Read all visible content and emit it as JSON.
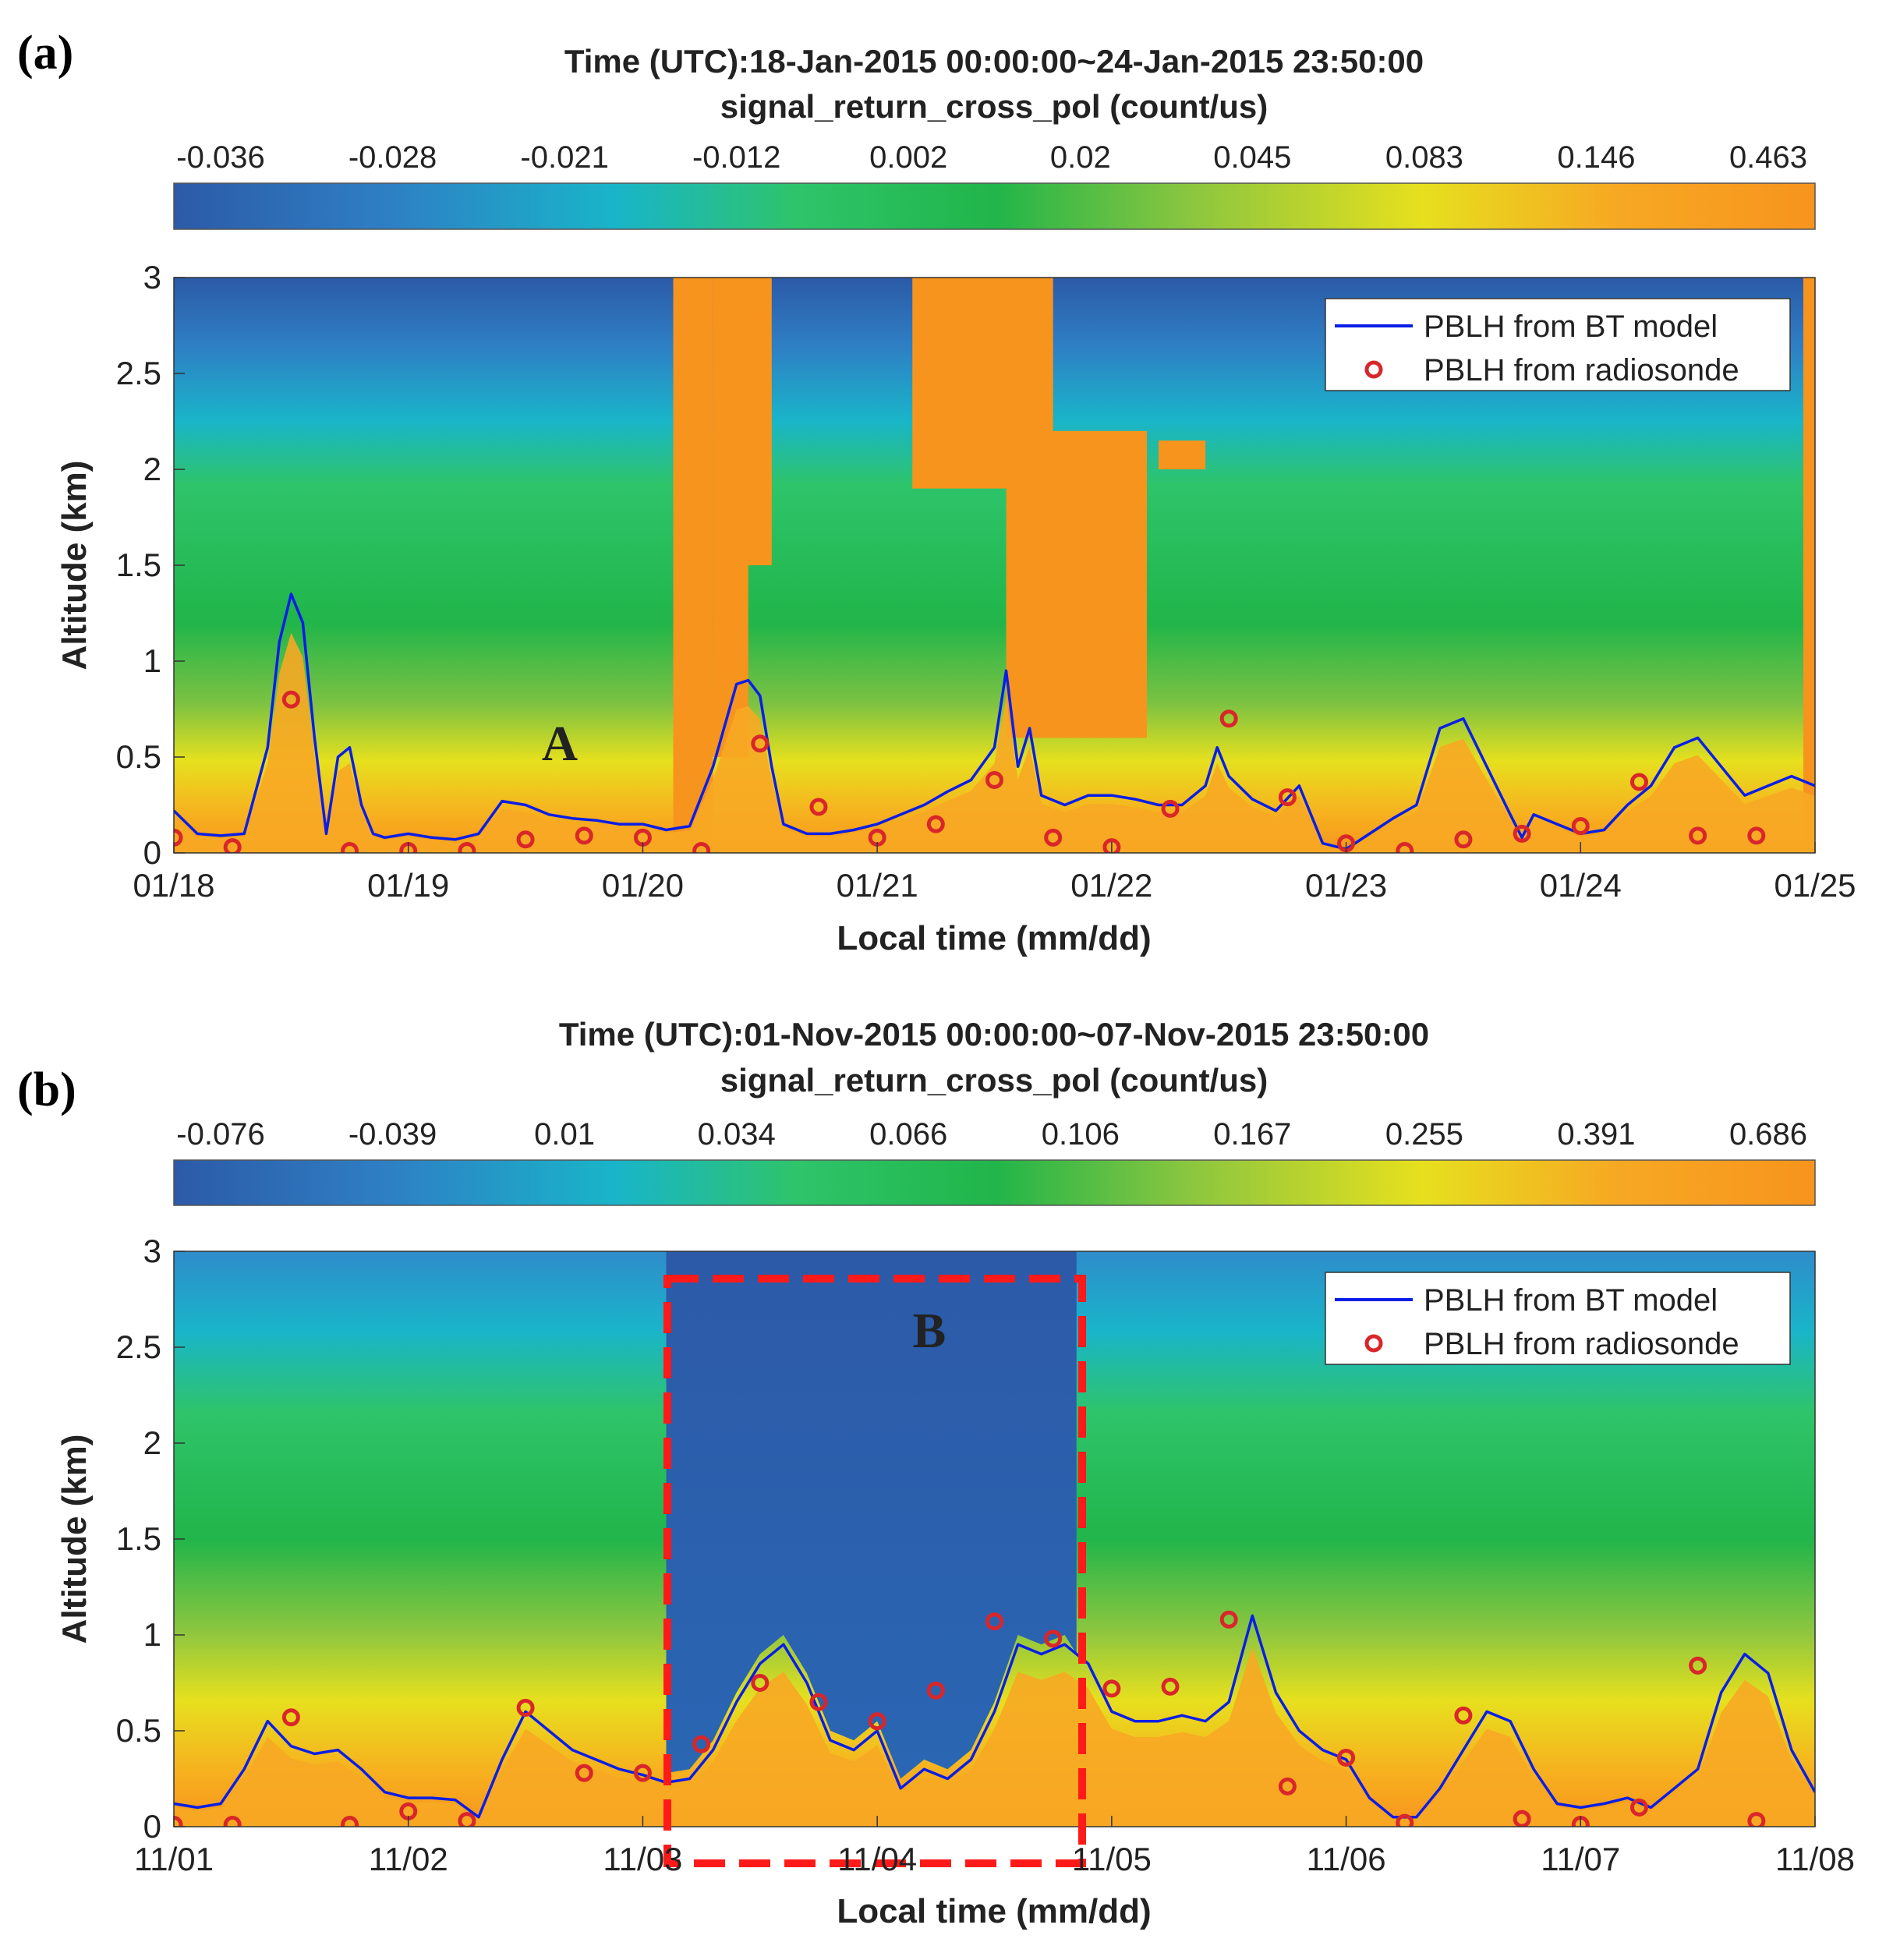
{
  "colors": {
    "pblh_line": "#0a1ee6",
    "radiosonde": "#d9262a",
    "box": "#ff1a1a",
    "cmap": [
      "#2c5aa8",
      "#2e7fc4",
      "#19b5c9",
      "#2ec46a",
      "#21b54a",
      "#8cc63f",
      "#e6e01e",
      "#f7a823",
      "#f7941d"
    ]
  },
  "chart_data": [
    {
      "type": "heatmap",
      "panel_label": "(a)",
      "title": "Time (UTC):18-Jan-2015 00:00:00~24-Jan-2015 23:50:00",
      "subtitle": "signal_return_cross_pol (count/us)",
      "colorbar_ticks": [
        "-0.036",
        "-0.028",
        "-0.021",
        "-0.012",
        "0.002",
        "0.02",
        "0.045",
        "0.083",
        "0.146",
        "0.463"
      ],
      "xlabel": "Local time (mm/dd)",
      "ylabel": "Altitude (km)",
      "xticks": [
        "01/18",
        "01/19",
        "01/20",
        "01/21",
        "01/22",
        "01/23",
        "01/24",
        "01/25"
      ],
      "xlim": [
        0,
        7
      ],
      "ylim": [
        0,
        3
      ],
      "yticks": [
        "0",
        "0.5",
        "1",
        "1.5",
        "2",
        "2.5",
        "3"
      ],
      "legend": [
        "PBLH from BT model",
        "PBLH from radiosonde"
      ],
      "legend_position": "top-right",
      "annotation": "A",
      "clouds": [
        {
          "x0": 2.13,
          "x1": 2.3,
          "bottom": 0.0,
          "top": 3.0
        },
        {
          "x0": 2.42,
          "x1": 2.55,
          "bottom": 1.5,
          "top": 3.0
        },
        {
          "x0": 2.3,
          "x1": 2.45,
          "bottom": 0.5,
          "top": 3.0
        },
        {
          "x0": 3.15,
          "x1": 3.75,
          "bottom": 1.9,
          "top": 3.0
        },
        {
          "x0": 3.55,
          "x1": 4.15,
          "bottom": 0.6,
          "top": 2.2
        },
        {
          "x0": 4.2,
          "x1": 4.4,
          "bottom": 2.0,
          "top": 2.15
        },
        {
          "x0": 6.95,
          "x1": 7.0,
          "bottom": 0.0,
          "top": 3.0
        }
      ],
      "pblh_bt": {
        "x": [
          0.0,
          0.1,
          0.2,
          0.3,
          0.4,
          0.45,
          0.5,
          0.55,
          0.6,
          0.65,
          0.7,
          0.75,
          0.8,
          0.85,
          0.9,
          1.0,
          1.1,
          1.2,
          1.3,
          1.4,
          1.5,
          1.6,
          1.7,
          1.8,
          1.9,
          2.0,
          2.1,
          2.2,
          2.3,
          2.4,
          2.45,
          2.5,
          2.55,
          2.6,
          2.7,
          2.8,
          2.9,
          3.0,
          3.1,
          3.2,
          3.3,
          3.4,
          3.5,
          3.55,
          3.6,
          3.65,
          3.7,
          3.8,
          3.9,
          4.0,
          4.1,
          4.2,
          4.3,
          4.4,
          4.45,
          4.5,
          4.6,
          4.7,
          4.8,
          4.9,
          5.0,
          5.1,
          5.2,
          5.3,
          5.4,
          5.5,
          5.6,
          5.7,
          5.75,
          5.8,
          5.9,
          6.0,
          6.1,
          6.2,
          6.3,
          6.4,
          6.5,
          6.6,
          6.7,
          6.8,
          6.9,
          7.0
        ],
        "y": [
          0.22,
          0.1,
          0.09,
          0.1,
          0.55,
          1.1,
          1.35,
          1.2,
          0.6,
          0.1,
          0.5,
          0.55,
          0.25,
          0.1,
          0.08,
          0.1,
          0.08,
          0.07,
          0.1,
          0.27,
          0.25,
          0.2,
          0.18,
          0.17,
          0.15,
          0.15,
          0.12,
          0.14,
          0.45,
          0.88,
          0.9,
          0.82,
          0.45,
          0.15,
          0.1,
          0.1,
          0.12,
          0.15,
          0.2,
          0.25,
          0.32,
          0.38,
          0.55,
          0.95,
          0.45,
          0.65,
          0.3,
          0.25,
          0.3,
          0.3,
          0.28,
          0.25,
          0.25,
          0.35,
          0.55,
          0.4,
          0.28,
          0.22,
          0.35,
          0.05,
          0.02,
          0.1,
          0.18,
          0.25,
          0.65,
          0.7,
          0.45,
          0.2,
          0.08,
          0.2,
          0.15,
          0.1,
          0.12,
          0.25,
          0.35,
          0.55,
          0.6,
          0.45,
          0.3,
          0.35,
          0.4,
          0.35
        ]
      },
      "pblh_radiosonde": {
        "x": [
          0.0,
          0.25,
          0.5,
          0.75,
          1.0,
          1.25,
          1.5,
          1.75,
          2.0,
          2.25,
          2.5,
          2.75,
          3.0,
          3.25,
          3.5,
          3.75,
          4.0,
          4.25,
          4.5,
          4.75,
          5.0,
          5.25,
          5.5,
          5.75,
          6.0,
          6.25,
          6.5,
          6.75
        ],
        "y": [
          0.08,
          0.03,
          0.8,
          0.01,
          0.01,
          0.01,
          0.07,
          0.09,
          0.08,
          0.01,
          0.57,
          0.24,
          0.08,
          0.15,
          0.38,
          0.08,
          0.03,
          0.23,
          0.7,
          0.29,
          0.05,
          0.01,
          0.07,
          0.1,
          0.14,
          0.37,
          0.09,
          0.09
        ]
      }
    },
    {
      "type": "heatmap",
      "panel_label": "(b)",
      "title": "Time (UTC):01-Nov-2015 00:00:00~07-Nov-2015 23:50:00",
      "subtitle": "signal_return_cross_pol (count/us)",
      "colorbar_ticks": [
        "-0.076",
        "-0.039",
        "0.01",
        "0.034",
        "0.066",
        "0.106",
        "0.167",
        "0.255",
        "0.391",
        "0.686"
      ],
      "xlabel": "Local time (mm/dd)",
      "ylabel": "Altitude (km)",
      "xticks": [
        "11/01",
        "11/02",
        "11/03",
        "11/04",
        "11/05",
        "11/06",
        "11/07",
        "11/08"
      ],
      "xlim": [
        0,
        7
      ],
      "ylim": [
        0,
        3
      ],
      "yticks": [
        "0",
        "0.5",
        "1",
        "1.5",
        "2",
        "2.5",
        "3"
      ],
      "legend": [
        "PBLH from BT model",
        "PBLH from radiosonde"
      ],
      "legend_position": "top-right",
      "annotation": "B",
      "clear_region": {
        "x0": 2.1,
        "x1": 3.85
      },
      "pblh_bt": {
        "x": [
          0.0,
          0.1,
          0.2,
          0.3,
          0.4,
          0.5,
          0.6,
          0.7,
          0.8,
          0.9,
          1.0,
          1.1,
          1.2,
          1.3,
          1.4,
          1.5,
          1.6,
          1.7,
          1.8,
          1.9,
          2.0,
          2.1,
          2.2,
          2.3,
          2.4,
          2.5,
          2.6,
          2.7,
          2.8,
          2.9,
          3.0,
          3.1,
          3.2,
          3.3,
          3.4,
          3.5,
          3.6,
          3.7,
          3.8,
          3.9,
          4.0,
          4.1,
          4.2,
          4.3,
          4.4,
          4.5,
          4.6,
          4.7,
          4.8,
          4.9,
          5.0,
          5.1,
          5.2,
          5.3,
          5.4,
          5.5,
          5.6,
          5.7,
          5.8,
          5.9,
          6.0,
          6.1,
          6.2,
          6.3,
          6.4,
          6.5,
          6.6,
          6.7,
          6.8,
          6.9,
          7.0
        ],
        "y": [
          0.12,
          0.1,
          0.12,
          0.3,
          0.55,
          0.42,
          0.38,
          0.4,
          0.3,
          0.18,
          0.15,
          0.15,
          0.14,
          0.05,
          0.35,
          0.6,
          0.5,
          0.4,
          0.35,
          0.3,
          0.27,
          0.23,
          0.25,
          0.4,
          0.65,
          0.85,
          0.95,
          0.75,
          0.45,
          0.4,
          0.5,
          0.2,
          0.3,
          0.25,
          0.35,
          0.6,
          0.95,
          0.9,
          0.95,
          0.85,
          0.6,
          0.55,
          0.55,
          0.58,
          0.55,
          0.65,
          1.1,
          0.7,
          0.5,
          0.4,
          0.35,
          0.15,
          0.05,
          0.05,
          0.2,
          0.4,
          0.6,
          0.55,
          0.3,
          0.12,
          0.1,
          0.12,
          0.15,
          0.1,
          0.2,
          0.3,
          0.7,
          0.9,
          0.8,
          0.4,
          0.18
        ]
      },
      "pblh_radiosonde": {
        "x": [
          0.0,
          0.25,
          0.5,
          0.75,
          1.0,
          1.25,
          1.5,
          1.75,
          2.0,
          2.25,
          2.5,
          2.75,
          3.0,
          3.25,
          3.5,
          3.75,
          4.0,
          4.25,
          4.5,
          4.75,
          5.0,
          5.25,
          5.5,
          5.75,
          6.0,
          6.25,
          6.5,
          6.75
        ],
        "y": [
          0.01,
          0.01,
          0.57,
          0.01,
          0.08,
          0.03,
          0.62,
          0.28,
          0.28,
          0.43,
          0.75,
          0.65,
          0.55,
          0.71,
          1.07,
          0.98,
          0.72,
          0.73,
          1.08,
          0.21,
          0.36,
          0.02,
          0.58,
          0.04,
          0.01,
          0.1,
          0.84,
          0.03
        ]
      }
    }
  ]
}
